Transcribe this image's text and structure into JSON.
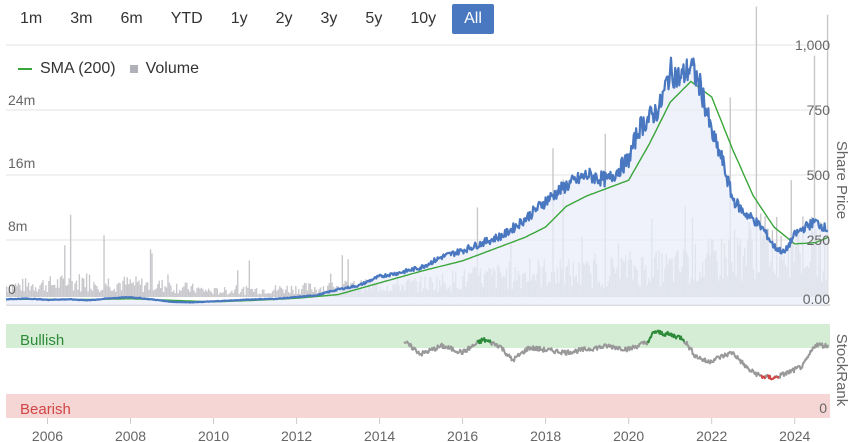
{
  "range_buttons": [
    "1m",
    "3m",
    "6m",
    "YTD",
    "1y",
    "2y",
    "3y",
    "5y",
    "10y",
    "All"
  ],
  "active_range": "All",
  "legend": {
    "sma_label": "SMA (200)",
    "volume_label": "Volume"
  },
  "colors": {
    "price": "#4a78c0",
    "sma": "#3aa53a",
    "volume": "#c8c8cc",
    "bullish_band": "#d5ecd5",
    "bearish_band": "#f6d5d5",
    "rank_neutral": "#999999",
    "rank_bullish": "#2e8b3a",
    "rank_bearish": "#d04545",
    "active_button": "#4a78c0"
  },
  "chart_data": {
    "type": "line",
    "x_ticks": [
      "2006",
      "2008",
      "2010",
      "2012",
      "2014",
      "2016",
      "2018",
      "2020",
      "2022",
      "2024"
    ],
    "price_axis": {
      "title": "Share Price",
      "ticks": [
        "1,000",
        "750",
        "500",
        "250",
        "0.00"
      ],
      "ylim": [
        0,
        1000
      ]
    },
    "volume_axis": {
      "ticks": [
        "24m",
        "16m",
        "8m",
        "0"
      ],
      "ylim": [
        0,
        32000000
      ]
    },
    "stockrank_axis": {
      "title": "StockRank",
      "ticks": [
        "0"
      ],
      "bands": [
        "Bullish",
        "Bearish"
      ]
    },
    "series": [
      {
        "name": "Share Price",
        "x": [
          2005.0,
          2005.5,
          2006.0,
          2006.5,
          2007.0,
          2007.5,
          2008.0,
          2008.5,
          2009.0,
          2009.5,
          2010.0,
          2010.5,
          2011.0,
          2011.5,
          2012.0,
          2012.5,
          2013.0,
          2013.5,
          2014.0,
          2014.5,
          2015.0,
          2015.5,
          2016.0,
          2016.5,
          2017.0,
          2017.5,
          2018.0,
          2018.5,
          2019.0,
          2019.5,
          2020.0,
          2020.25,
          2020.5,
          2020.75,
          2021.0,
          2021.25,
          2021.5,
          2021.75,
          2022.0,
          2022.25,
          2022.5,
          2022.75,
          2023.0,
          2023.25,
          2023.5,
          2023.75,
          2024.0,
          2024.25,
          2024.5,
          2024.8
        ],
        "values": [
          22,
          25,
          20,
          22,
          18,
          26,
          30,
          22,
          12,
          10,
          14,
          18,
          22,
          24,
          30,
          38,
          60,
          75,
          110,
          125,
          145,
          185,
          210,
          240,
          270,
          330,
          400,
          460,
          500,
          480,
          560,
          680,
          720,
          760,
          900,
          870,
          920,
          830,
          660,
          560,
          410,
          360,
          330,
          290,
          225,
          200,
          270,
          300,
          320,
          290
        ]
      },
      {
        "name": "SMA (200)",
        "x": [
          2005.0,
          2006.0,
          2007.0,
          2008.0,
          2009.0,
          2010.0,
          2011.0,
          2012.0,
          2013.0,
          2014.0,
          2015.0,
          2016.0,
          2017.0,
          2017.5,
          2018.0,
          2018.5,
          2019.0,
          2019.5,
          2020.0,
          2020.5,
          2021.0,
          2021.5,
          2022.0,
          2022.5,
          2023.0,
          2023.5,
          2024.0,
          2024.5,
          2024.8
        ],
        "values": [
          22,
          22,
          21,
          24,
          18,
          12,
          18,
          26,
          40,
          85,
          130,
          170,
          230,
          260,
          300,
          380,
          420,
          450,
          480,
          620,
          780,
          860,
          800,
          600,
          420,
          300,
          235,
          240,
          260
        ]
      },
      {
        "name": "Volume",
        "x": [
          2005.0,
          2006.0,
          2007.0,
          2008.0,
          2009.0,
          2010.0,
          2011.0,
          2012.0,
          2013.0,
          2014.0,
          2015.0,
          2016.0,
          2017.0,
          2018.0,
          2019.0,
          2020.0,
          2021.0,
          2022.0,
          2023.0,
          2024.0,
          2024.8
        ],
        "values": [
          1500000,
          1800000,
          2200000,
          1800000,
          1500000,
          800000,
          1000000,
          1200000,
          1400000,
          1600000,
          1800000,
          2500000,
          3000000,
          3500000,
          3200000,
          4000000,
          4000000,
          5000000,
          7000000,
          8000000,
          6000000
        ]
      },
      {
        "name": "StockRank",
        "x": [
          2014.6,
          2015.0,
          2015.5,
          2016.0,
          2016.5,
          2016.9,
          2017.2,
          2017.6,
          2018.0,
          2018.5,
          2019.0,
          2019.5,
          2020.0,
          2020.5,
          2020.6,
          2021.0,
          2021.3,
          2021.6,
          2021.9,
          2022.2,
          2022.5,
          2022.9,
          2023.2,
          2023.5,
          2023.9,
          2024.2,
          2024.5,
          2024.8
        ],
        "values": [
          85,
          70,
          80,
          72,
          88,
          80,
          62,
          78,
          75,
          72,
          76,
          80,
          76,
          86,
          98,
          94,
          90,
          68,
          60,
          66,
          72,
          50,
          42,
          40,
          48,
          55,
          82,
          80
        ]
      }
    ]
  }
}
